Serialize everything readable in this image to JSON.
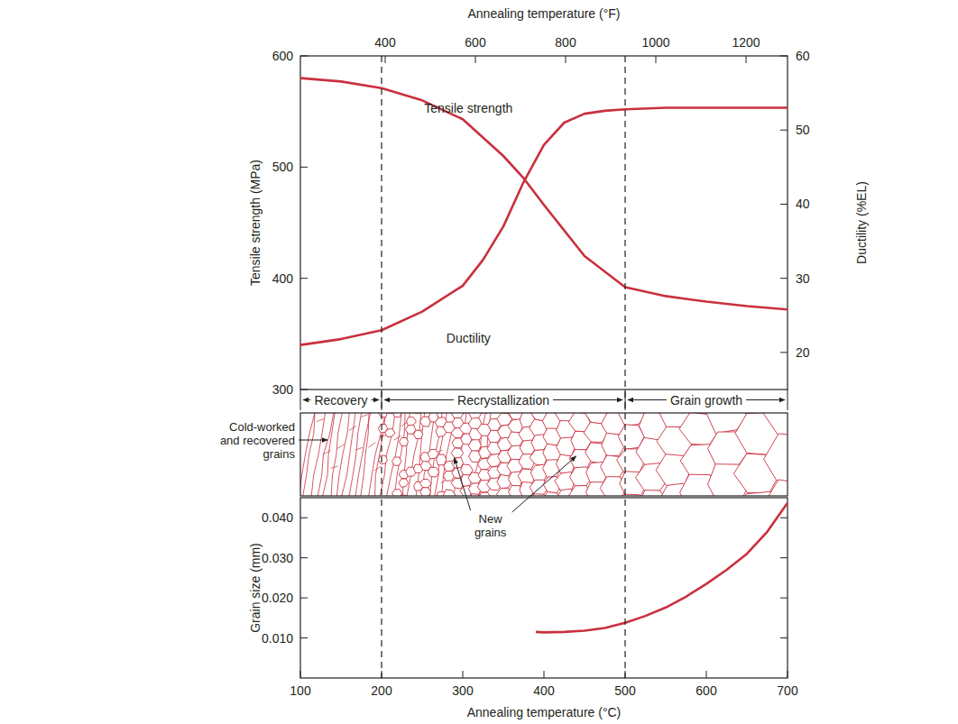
{
  "chart_data": [
    {
      "type": "line",
      "x2_label": "Annealing temperature (°F)",
      "y_label": "Tensile strength (MPa)",
      "y2_label": "Ductility (%EL)",
      "xlim": [
        100,
        700
      ],
      "x2lim": [
        212,
        1292
      ],
      "x2ticks": [
        400,
        600,
        800,
        1000,
        1200
      ],
      "ylim": [
        300,
        600
      ],
      "yticks": [
        300,
        400,
        500,
        600
      ],
      "y2lim": [
        15,
        60
      ],
      "y2ticks": [
        20,
        30,
        40,
        50,
        60
      ],
      "series": [
        {
          "name": "Tensile strength",
          "color": "#c9303e",
          "x": [
            100,
            150,
            200,
            250,
            300,
            350,
            375,
            400,
            450,
            500,
            550,
            600,
            650,
            700
          ],
          "values": [
            580,
            577,
            571,
            560,
            543,
            510,
            490,
            466,
            420,
            392,
            384,
            379,
            375,
            372
          ]
        },
        {
          "name": "Ductility",
          "color": "#c9303e",
          "axis": "y2",
          "x": [
            100,
            150,
            200,
            250,
            300,
            325,
            350,
            375,
            400,
            425,
            450,
            475,
            500,
            550,
            600,
            650,
            700
          ],
          "values": [
            21,
            21.8,
            23,
            25.5,
            29,
            32.5,
            37,
            43,
            48,
            51,
            52.2,
            52.6,
            52.8,
            53,
            53,
            53,
            53
          ]
        }
      ],
      "regions": [
        {
          "label": "Recovery",
          "from": 100,
          "to": 200
        },
        {
          "label": "Recrystallization",
          "from": 200,
          "to": 500
        },
        {
          "label": "Grain growth",
          "from": 500,
          "to": 700
        }
      ],
      "annotations": [
        "Cold-worked and recovered grains",
        "New grains"
      ]
    },
    {
      "type": "line",
      "x_label": "Annealing temperature (°C)",
      "y_label": "Grain size (mm)",
      "xlim": [
        100,
        700
      ],
      "xticks": [
        100,
        200,
        300,
        400,
        500,
        600,
        700
      ],
      "ylim": [
        0,
        0.045
      ],
      "yticks": [
        {
          "value": 0.01,
          "label": "0.010"
        },
        {
          "value": 0.02,
          "label": "0.020"
        },
        {
          "value": 0.03,
          "label": "0.030"
        },
        {
          "value": 0.04,
          "label": "0.040"
        }
      ],
      "series": [
        {
          "color": "#c9303e",
          "x": [
            390,
            400,
            425,
            450,
            475,
            500,
            525,
            550,
            575,
            600,
            625,
            650,
            675,
            700
          ],
          "values": [
            0.0115,
            0.0114,
            0.0115,
            0.0118,
            0.0125,
            0.0138,
            0.0155,
            0.0176,
            0.0203,
            0.0235,
            0.027,
            0.031,
            0.0365,
            0.0437
          ]
        }
      ]
    }
  ]
}
